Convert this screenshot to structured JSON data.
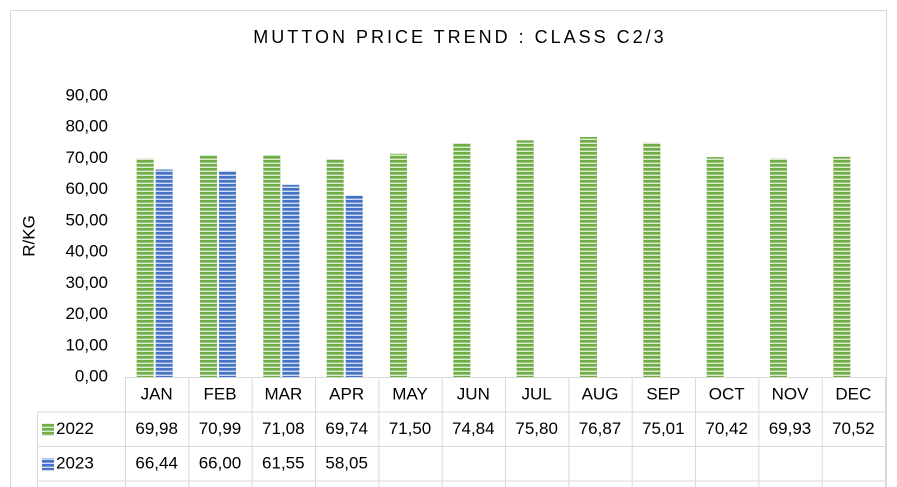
{
  "chart_data": {
    "type": "bar",
    "title": "MUTTON  PRICE TREND : CLASS C2/3",
    "y_label": "R/KG",
    "categories": [
      "JAN",
      "FEB",
      "MAR",
      "APR",
      "MAY",
      "JUN",
      "JUL",
      "AUG",
      "SEP",
      "OCT",
      "NOV",
      "DEC"
    ],
    "series": [
      {
        "name": "2022",
        "color": "#70ad47",
        "values": [
          69.98,
          70.99,
          71.08,
          69.74,
          71.5,
          74.84,
          75.8,
          76.87,
          75.01,
          70.42,
          69.93,
          70.52
        ],
        "value_labels": [
          "69,98",
          "70,99",
          "71,08",
          "69,74",
          "71,50",
          "74,84",
          "75,80",
          "76,87",
          "75,01",
          "70,42",
          "69,93",
          "70,52"
        ]
      },
      {
        "name": "2023",
        "color": "#4472c4",
        "values": [
          66.44,
          66.0,
          61.55,
          58.05,
          null,
          null,
          null,
          null,
          null,
          null,
          null,
          null
        ],
        "value_labels": [
          "66,44",
          "66,00",
          "61,55",
          "58,05",
          null,
          null,
          null,
          null,
          null,
          null,
          null,
          null
        ]
      }
    ],
    "ylim": [
      0,
      90
    ],
    "yticks": [
      {
        "value": 0,
        "label": "0,00"
      },
      {
        "value": 10,
        "label": "10,00"
      },
      {
        "value": 20,
        "label": "20,00"
      },
      {
        "value": 30,
        "label": "30,00"
      },
      {
        "value": 40,
        "label": "40,00"
      },
      {
        "value": 50,
        "label": "50,00"
      },
      {
        "value": 60,
        "label": "60,00"
      },
      {
        "value": 70,
        "label": "70,00"
      },
      {
        "value": 80,
        "label": "80,00"
      },
      {
        "value": 90,
        "label": "90,00"
      }
    ],
    "grid": false,
    "data_table": true
  }
}
